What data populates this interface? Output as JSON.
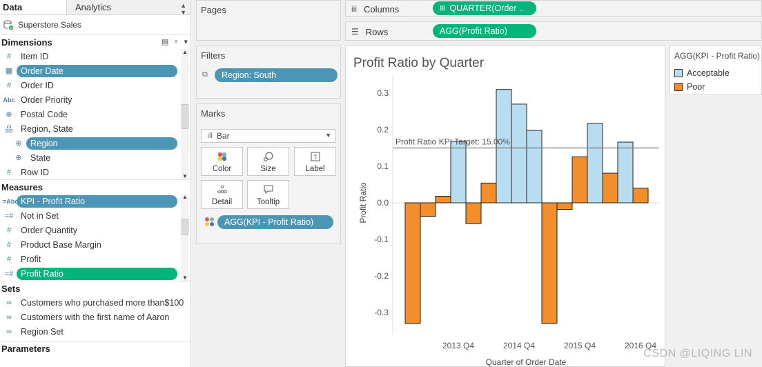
{
  "data_pane": {
    "tab_data": "Data",
    "tab_analytics": "Analytics",
    "datasource": "Superstore Sales",
    "dimensions_header": "Dimensions",
    "dimensions": [
      {
        "icon": "#",
        "label": "Item ID"
      },
      {
        "icon": "date",
        "label": "Order Date",
        "selected": true
      },
      {
        "icon": "#",
        "label": "Order ID"
      },
      {
        "icon": "Abc",
        "label": "Order Priority"
      },
      {
        "icon": "globe",
        "label": "Postal Code"
      },
      {
        "icon": "hier",
        "label": "Region, State"
      },
      {
        "icon": "globe",
        "label": "Region",
        "selected": true
      },
      {
        "icon": "globe",
        "label": "State"
      },
      {
        "icon": "#",
        "label": "Row ID"
      }
    ],
    "measures_header": "Measures",
    "measures": [
      {
        "icon": "=Abc",
        "label": "KPI - Profit Ratio",
        "selected": true
      },
      {
        "icon": "=#",
        "label": "Not in Set"
      },
      {
        "icon": "#",
        "label": "Order Quantity"
      },
      {
        "icon": "#",
        "label": "Product Base Margin"
      },
      {
        "icon": "#",
        "label": "Profit"
      },
      {
        "icon": "=#",
        "label": "Profit Ratio",
        "selected": true
      }
    ],
    "sets_header": "Sets",
    "sets": [
      "Customers who purchased more than$100",
      "Customers with the first name of Aaron",
      "Region Set"
    ],
    "parameters_header": "Parameters"
  },
  "pages": {
    "title": "Pages"
  },
  "filters": {
    "title": "Filters",
    "pill": "Region: South"
  },
  "marks": {
    "title": "Marks",
    "type": "Bar",
    "buttons": {
      "color": "Color",
      "size": "Size",
      "label": "Label",
      "detail": "Detail",
      "tooltip": "Tooltip"
    },
    "pill": "AGG(KPI - Profit Ratio)"
  },
  "shelves": {
    "columns_label": "Columns",
    "columns_pill": "QUARTER(Order ..",
    "rows_label": "Rows",
    "rows_pill": "AGG(Profit Ratio)"
  },
  "legend": {
    "title": "AGG(KPI - Profit Ratio)",
    "items": [
      {
        "label": "Acceptable",
        "color": "#b9ddf0"
      },
      {
        "label": "Poor",
        "color": "#f28e2b"
      }
    ]
  },
  "colors": {
    "blue_pill": "#4a96b4",
    "green_pill": "#04b47b"
  },
  "watermark": "CSDN @LIQING LIN",
  "chart_data": {
    "type": "bar",
    "title": "Profit Ratio by Quarter",
    "xlabel": "Quarter of Order Date",
    "ylabel": "Profit Ratio",
    "ylim": [
      -0.36,
      0.36
    ],
    "yticks": [
      0.3,
      0.2,
      0.1,
      0.0,
      -0.1,
      -0.2,
      -0.3
    ],
    "ytick_labels": [
      "0.3",
      "0.2",
      "0.1",
      "0.0",
      "-0.1",
      "-0.2",
      "-0.3"
    ],
    "x_tick_labels": [
      {
        "label": "2013 Q4",
        "after_bar": 3
      },
      {
        "label": "2014 Q4",
        "after_bar": 7
      },
      {
        "label": "2015 Q4",
        "after_bar": 11
      },
      {
        "label": "2016 Q4",
        "after_bar": 15
      }
    ],
    "values": [
      -0.33,
      -0.037,
      0.018,
      0.168,
      -0.057,
      0.054,
      0.31,
      0.27,
      0.198,
      -0.33,
      -0.018,
      0.126,
      0.217,
      0.081,
      0.166,
      0.04
    ],
    "categories_kpi": [
      "Poor",
      "Poor",
      "Poor",
      "Acceptable",
      "Poor",
      "Poor",
      "Acceptable",
      "Acceptable",
      "Acceptable",
      "Poor",
      "Poor",
      "Poor",
      "Acceptable",
      "Poor",
      "Acceptable",
      "Poor"
    ],
    "reference_line": {
      "value": 0.15,
      "label": "Profit Ratio KPI Target: 15.00%"
    },
    "colors": {
      "Acceptable": "#b9ddf0",
      "Poor": "#f28e2b"
    }
  }
}
